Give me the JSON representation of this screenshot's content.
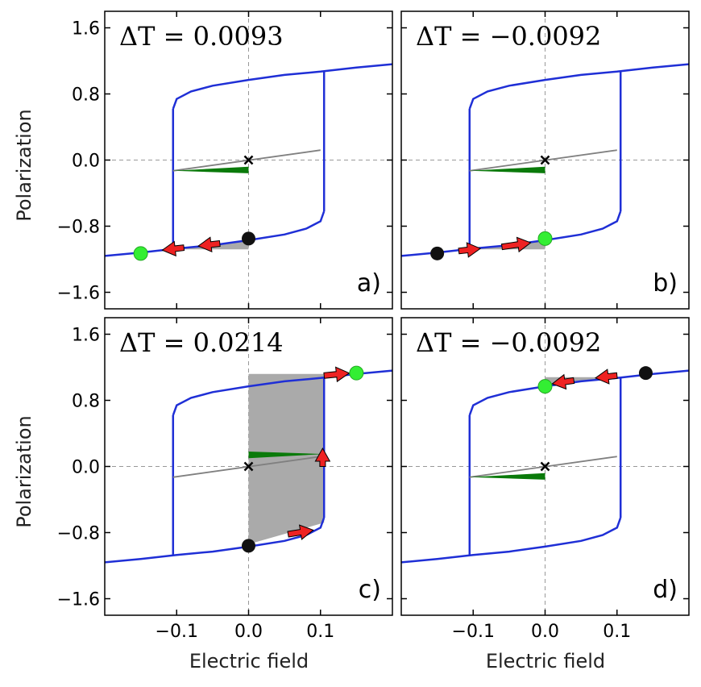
{
  "chart_data": {
    "type": "line",
    "layout": "2x2 grid",
    "xlabel": "Electric field",
    "ylabel": "Polarization",
    "xlim": [
      -0.2,
      0.2
    ],
    "ylim": [
      -1.8,
      1.8
    ],
    "xticks": [
      -0.1,
      0.0,
      0.1
    ],
    "xtick_labels": [
      "−0.1",
      "0.0",
      "0.1"
    ],
    "yticks": [
      -1.6,
      -0.8,
      0.0,
      0.8,
      1.6
    ],
    "ytick_labels": [
      "−1.6",
      "−0.8",
      "0.0",
      "0.8",
      "1.6"
    ],
    "colors": {
      "loop": "#1f2fd6",
      "linear": "#808080",
      "fill_gray": "#aaaaaa",
      "fill_green": "#0a7a0a",
      "arrow": "#ee2222",
      "start_marker": "#111111",
      "end_marker": "#33ee33"
    },
    "loop": {
      "coercive_field": 0.105,
      "upper_branch": [
        [
          -0.105,
          0.62
        ],
        [
          -0.1,
          0.74
        ],
        [
          -0.08,
          0.83
        ],
        [
          -0.05,
          0.9
        ],
        [
          0.0,
          0.97
        ],
        [
          0.05,
          1.03
        ],
        [
          0.1,
          1.07
        ],
        [
          0.15,
          1.12
        ],
        [
          0.2,
          1.16
        ]
      ],
      "lower_branch": [
        [
          -0.2,
          -1.16
        ],
        [
          -0.15,
          -1.12
        ],
        [
          -0.1,
          -1.07
        ],
        [
          -0.05,
          -1.03
        ],
        [
          0.0,
          -0.97
        ],
        [
          0.05,
          -0.9
        ],
        [
          0.08,
          -0.83
        ],
        [
          0.1,
          -0.74
        ],
        [
          0.105,
          -0.62
        ]
      ]
    },
    "panels": [
      {
        "label": "a)",
        "delta_T": "ΔT = 0.0093",
        "start_point": [
          0.0,
          -0.95
        ],
        "end_point": [
          -0.15,
          -1.13
        ],
        "arrows": [
          [
            [
              -0.04,
              -1.01
            ],
            [
              -0.07,
              -1.04
            ]
          ],
          [
            [
              -0.09,
              -1.06
            ],
            [
              -0.12,
              -1.09
            ]
          ]
        ],
        "gray_area": [
          [
            -0.105,
            -1.08
          ],
          [
            0.0,
            -0.97
          ],
          [
            0.0,
            -1.08
          ]
        ],
        "green_area": [
          [
            -0.105,
            -0.13
          ],
          [
            0.0,
            -0.08
          ],
          [
            0.0,
            -0.16
          ]
        ],
        "linear_segment": [
          [
            -0.105,
            -0.13
          ],
          [
            0.1,
            0.12
          ]
        ]
      },
      {
        "label": "b)",
        "delta_T": "ΔT = −0.0092",
        "start_point": [
          -0.15,
          -1.13
        ],
        "end_point": [
          0.0,
          -0.95
        ],
        "arrows": [
          [
            [
              -0.12,
              -1.1
            ],
            [
              -0.09,
              -1.07
            ]
          ],
          [
            [
              -0.06,
              -1.05
            ],
            [
              -0.02,
              -1.0
            ]
          ]
        ],
        "gray_area": [
          [
            -0.105,
            -1.08
          ],
          [
            0.0,
            -0.97
          ],
          [
            0.0,
            -1.08
          ]
        ],
        "green_area": [
          [
            -0.105,
            -0.13
          ],
          [
            0.0,
            -0.08
          ],
          [
            0.0,
            -0.16
          ]
        ],
        "linear_segment": [
          [
            -0.105,
            -0.13
          ],
          [
            0.1,
            0.12
          ]
        ]
      },
      {
        "label": "c)",
        "delta_T": "ΔT = 0.0214",
        "start_point": [
          0.0,
          -0.96
        ],
        "end_point": [
          0.15,
          1.13
        ],
        "arrows": [
          [
            [
              0.055,
              -0.82
            ],
            [
              0.09,
              -0.77
            ]
          ],
          [
            [
              0.103,
              0.0
            ],
            [
              0.103,
              0.22
            ]
          ],
          [
            [
              0.105,
              1.1
            ],
            [
              0.14,
              1.13
            ]
          ]
        ],
        "gray_area": [
          [
            0.0,
            1.12
          ],
          [
            0.105,
            1.12
          ],
          [
            0.105,
            -0.68
          ],
          [
            0.0,
            -0.94
          ]
        ],
        "green_area": [
          [
            0.0,
            0.1
          ],
          [
            0.105,
            0.15
          ],
          [
            0.0,
            0.18
          ]
        ],
        "linear_segment": [
          [
            -0.105,
            -0.13
          ],
          [
            0.1,
            0.12
          ]
        ]
      },
      {
        "label": "d)",
        "delta_T": "ΔT = −0.0092",
        "start_point": [
          0.14,
          1.13
        ],
        "end_point": [
          0.0,
          0.97
        ],
        "arrows": [
          [
            [
              0.1,
              1.1
            ],
            [
              0.07,
              1.07
            ]
          ],
          [
            [
              0.04,
              1.04
            ],
            [
              0.01,
              1.0
            ]
          ]
        ],
        "gray_area": [
          [
            0.0,
            0.97
          ],
          [
            0.105,
            1.08
          ],
          [
            0.0,
            1.08
          ]
        ],
        "green_area": [
          [
            -0.105,
            -0.13
          ],
          [
            0.0,
            -0.08
          ],
          [
            0.0,
            -0.16
          ]
        ],
        "linear_segment": [
          [
            -0.105,
            -0.13
          ],
          [
            0.1,
            0.12
          ]
        ]
      }
    ]
  }
}
